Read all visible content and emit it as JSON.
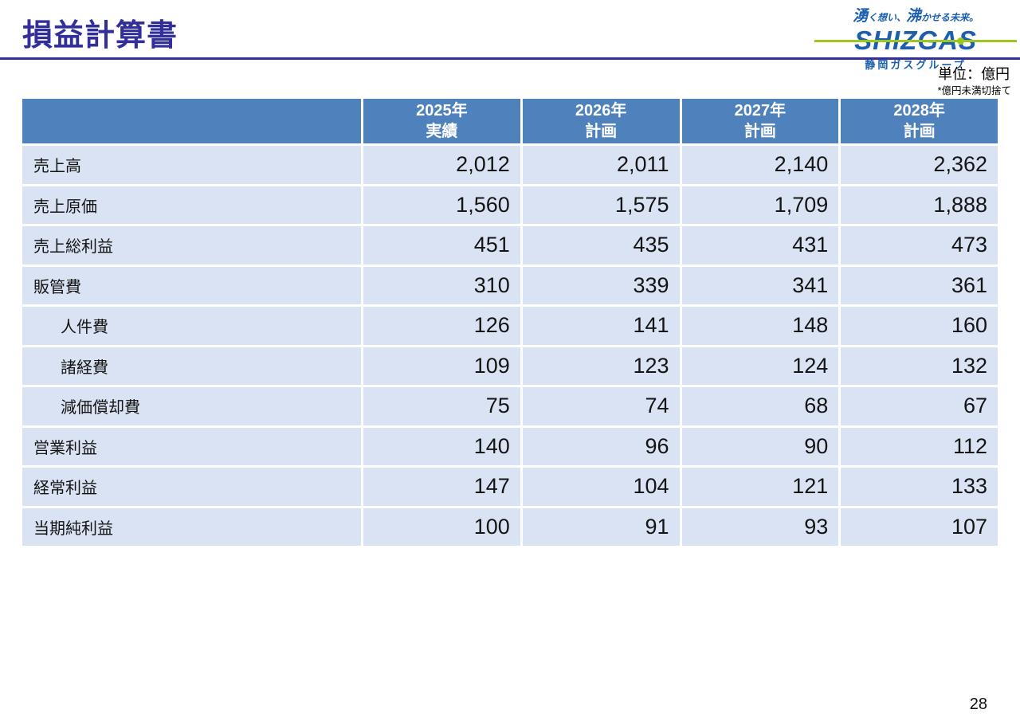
{
  "page": {
    "title": "損益計算書",
    "page_number": "28"
  },
  "logo": {
    "tagline_big1": "湧",
    "tagline_small1": "く想い、",
    "tagline_big2": "沸",
    "tagline_small2": "かせる未来。",
    "wordmark": "SHIZGAS",
    "subtitle": "静岡ガスグループ"
  },
  "notes": {
    "unit": "単位：億円",
    "rounding": "*億円未満切捨て"
  },
  "colors": {
    "title_indigo": "#322E9A",
    "table_header_blue": "#4F81BD",
    "table_row_blue": "#DAE3F3",
    "logo_blue": "#1D5EAE",
    "logo_green": "#9CC81C"
  },
  "table": {
    "columns": [
      {
        "year": "2025年",
        "type": "実績"
      },
      {
        "year": "2026年",
        "type": "計画"
      },
      {
        "year": "2027年",
        "type": "計画"
      },
      {
        "year": "2028年",
        "type": "計画"
      }
    ],
    "rows": [
      {
        "label": "売上高",
        "indent": false,
        "values": [
          "2,012",
          "2,011",
          "2,140",
          "2,362"
        ]
      },
      {
        "label": "売上原価",
        "indent": false,
        "values": [
          "1,560",
          "1,575",
          "1,709",
          "1,888"
        ]
      },
      {
        "label": "売上総利益",
        "indent": false,
        "values": [
          "451",
          "435",
          "431",
          "473"
        ]
      },
      {
        "label": "販管費",
        "indent": false,
        "values": [
          "310",
          "339",
          "341",
          "361"
        ]
      },
      {
        "label": "人件費",
        "indent": true,
        "values": [
          "126",
          "141",
          "148",
          "160"
        ]
      },
      {
        "label": "諸経費",
        "indent": true,
        "values": [
          "109",
          "123",
          "124",
          "132"
        ]
      },
      {
        "label": "減価償却費",
        "indent": true,
        "values": [
          "75",
          "74",
          "68",
          "67"
        ]
      },
      {
        "label": "営業利益",
        "indent": false,
        "values": [
          "140",
          "96",
          "90",
          "112"
        ]
      },
      {
        "label": "経常利益",
        "indent": false,
        "values": [
          "147",
          "104",
          "121",
          "133"
        ]
      },
      {
        "label": "当期純利益",
        "indent": false,
        "values": [
          "100",
          "91",
          "93",
          "107"
        ]
      }
    ]
  }
}
